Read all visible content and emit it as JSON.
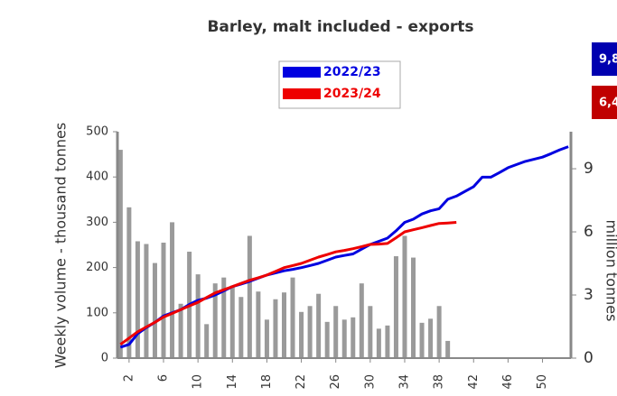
{
  "chart_data": {
    "type": "bar-line",
    "title": "Barley, malt included - exports",
    "ylabel": "Weekly volume - thousand tonnes",
    "y2label": "million tonnes",
    "x": [
      1,
      2,
      3,
      4,
      5,
      6,
      7,
      8,
      9,
      10,
      11,
      12,
      13,
      14,
      15,
      16,
      17,
      18,
      19,
      20,
      21,
      22,
      23,
      24,
      25,
      26,
      27,
      28,
      29,
      30,
      31,
      32,
      33,
      34,
      35,
      36,
      37,
      38,
      39,
      40,
      41,
      42,
      43,
      44,
      45,
      46,
      47,
      48,
      49,
      50,
      51,
      52,
      53
    ],
    "xlim": [
      0.65,
      53.3
    ],
    "xticks": [
      2,
      6,
      10,
      14,
      18,
      22,
      26,
      30,
      34,
      38,
      42,
      46,
      50
    ],
    "ylim": [
      0,
      500
    ],
    "yticks": [
      0,
      100,
      200,
      300,
      400,
      500
    ],
    "y2lim": [
      0,
      10.76
    ],
    "y2ticks": [
      0,
      3,
      6,
      9
    ],
    "bars": {
      "color": "#9a9a9a",
      "values": [
        460,
        333,
        258,
        252,
        210,
        255,
        300,
        120,
        235,
        185,
        75,
        165,
        178,
        160,
        135,
        270,
        147,
        85,
        130,
        145,
        178,
        102,
        115,
        142,
        80,
        115,
        85,
        90,
        165,
        115,
        65,
        72,
        225,
        270,
        222,
        78,
        87,
        115,
        38,
        null,
        null,
        null,
        null,
        null,
        null,
        null,
        null,
        null,
        null,
        null,
        null,
        null,
        null
      ]
    },
    "series": [
      {
        "name": "2022/23",
        "color": "#0000e0",
        "axis": "y2",
        "values": [
          0.52,
          0.65,
          1.16,
          1.45,
          1.7,
          2.0,
          2.15,
          2.3,
          2.55,
          2.75,
          2.85,
          3.0,
          3.2,
          3.4,
          3.52,
          3.65,
          3.8,
          3.95,
          4.05,
          4.15,
          4.22,
          4.3,
          4.4,
          4.5,
          4.65,
          4.8,
          4.88,
          4.95,
          5.18,
          5.4,
          5.55,
          5.7,
          6.05,
          6.45,
          6.6,
          6.85,
          7.0,
          7.1,
          7.55,
          7.7,
          7.92,
          8.15,
          8.6,
          8.6,
          8.82,
          9.05,
          9.2,
          9.35,
          9.45,
          9.55,
          9.72,
          9.9,
          10.05
        ]
      },
      {
        "name": "2023/24",
        "color": "#ee0000",
        "axis": "y2",
        "values": [
          0.65,
          0.95,
          1.25,
          1.48,
          1.7,
          1.95,
          2.12,
          2.3,
          2.48,
          2.65,
          2.88,
          3.1,
          3.25,
          3.4,
          3.55,
          3.7,
          3.82,
          3.95,
          4.12,
          4.3,
          4.4,
          4.5,
          4.65,
          4.8,
          4.92,
          5.05,
          5.12,
          5.2,
          5.3,
          5.4,
          5.42,
          5.45,
          5.72,
          6.0,
          6.1,
          6.2,
          6.3,
          6.4,
          6.42,
          6.45,
          null,
          null,
          null,
          null,
          null,
          null,
          null,
          null,
          null,
          null,
          null,
          null,
          null
        ]
      }
    ],
    "annotations": [
      {
        "text": "9,8",
        "color": "#0000b0"
      },
      {
        "text": "6,4",
        "color": "#c00000"
      }
    ]
  }
}
